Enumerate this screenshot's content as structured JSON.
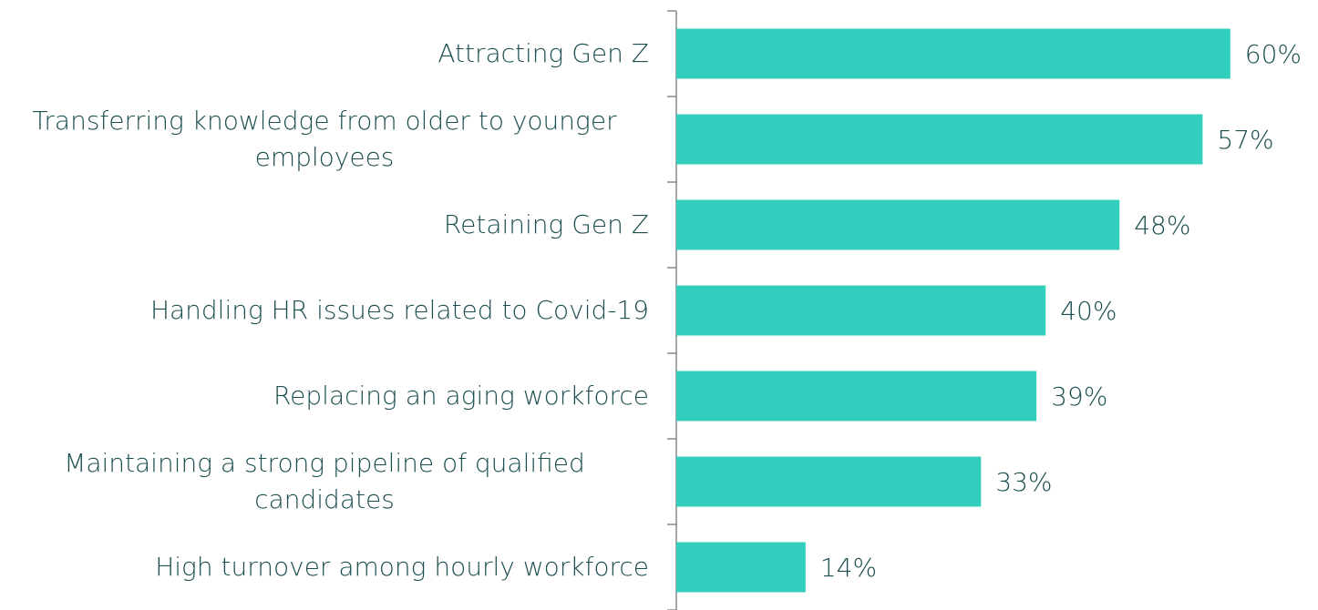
{
  "chart_data": {
    "type": "bar",
    "orientation": "horizontal",
    "categories": [
      "Attracting Gen Z",
      "Transferring knowledge from older to younger employees",
      "Retaining Gen Z",
      "Handling HR issues related to Covid-19",
      "Replacing an aging workforce",
      "Maintaining a strong pipeline of qualified candidates",
      "High turnover among hourly workforce"
    ],
    "values": [
      60,
      57,
      48,
      40,
      39,
      33,
      14
    ],
    "value_labels": [
      "60%",
      "57%",
      "48%",
      "40%",
      "39%",
      "33%",
      "14%"
    ],
    "color": "#33cfbe"
  }
}
